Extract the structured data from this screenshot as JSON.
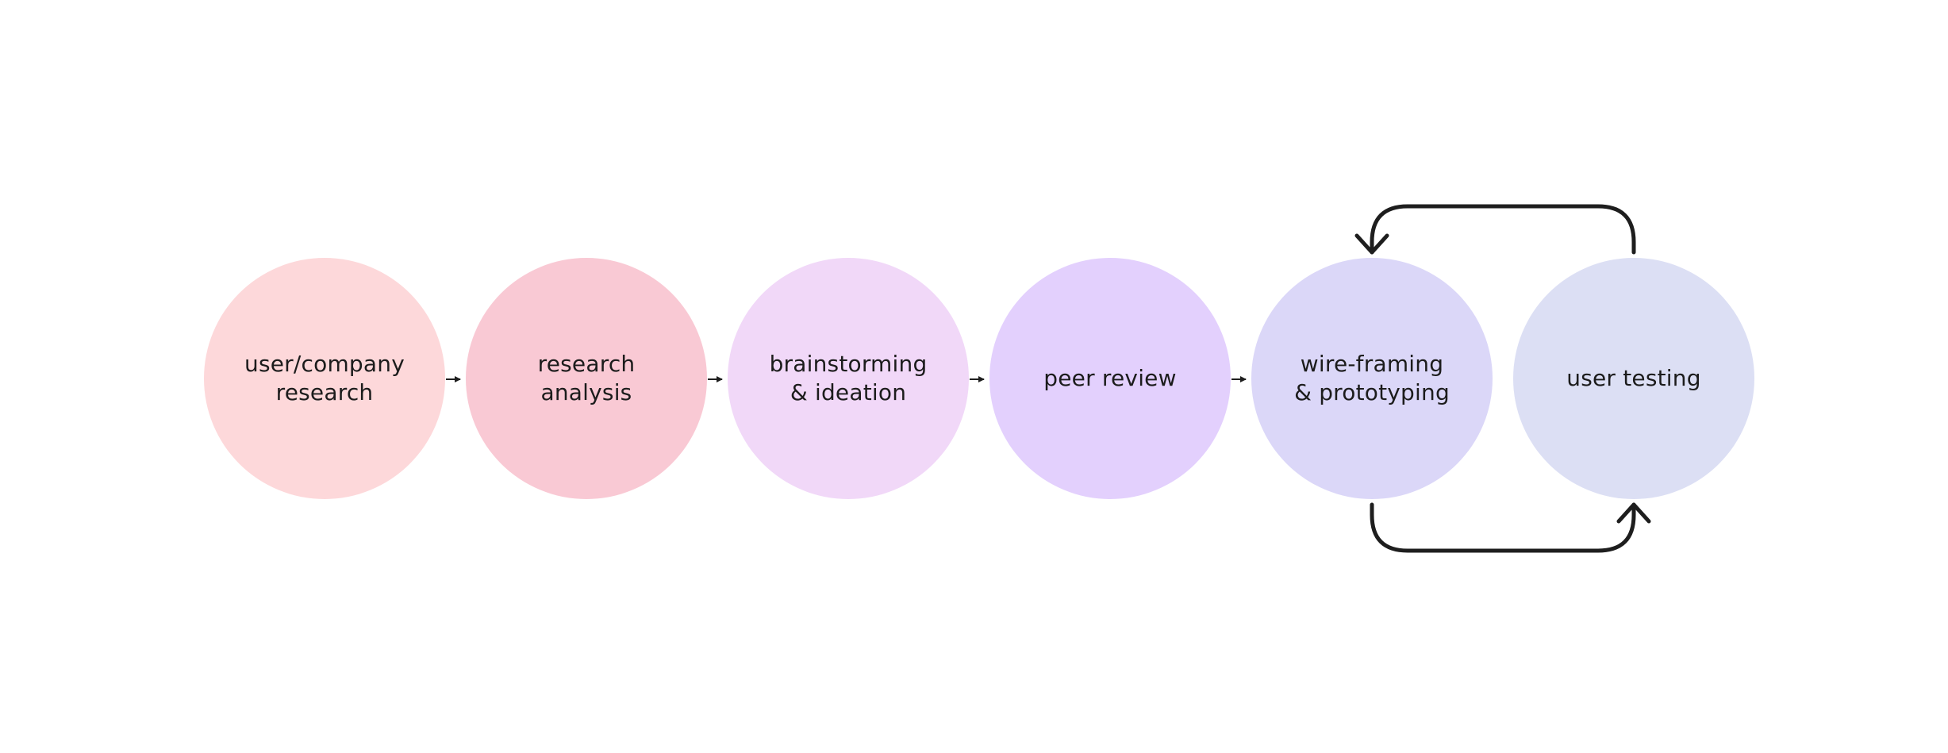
{
  "steps": [
    {
      "label": "user/company\nresearch",
      "color": "#fdd8da"
    },
    {
      "label": "research\nanalysis",
      "color": "#f9c9d4"
    },
    {
      "label": "brainstorming\n& ideation",
      "color": "#f1d8f8"
    },
    {
      "label": "peer review",
      "color": "#e3d0fd"
    },
    {
      "label": "wire-framing\n& prototyping",
      "color": "#dbd7f8"
    },
    {
      "label": "user testing",
      "color": "#dcdff4"
    }
  ],
  "connector_color": "#1e1e1e"
}
